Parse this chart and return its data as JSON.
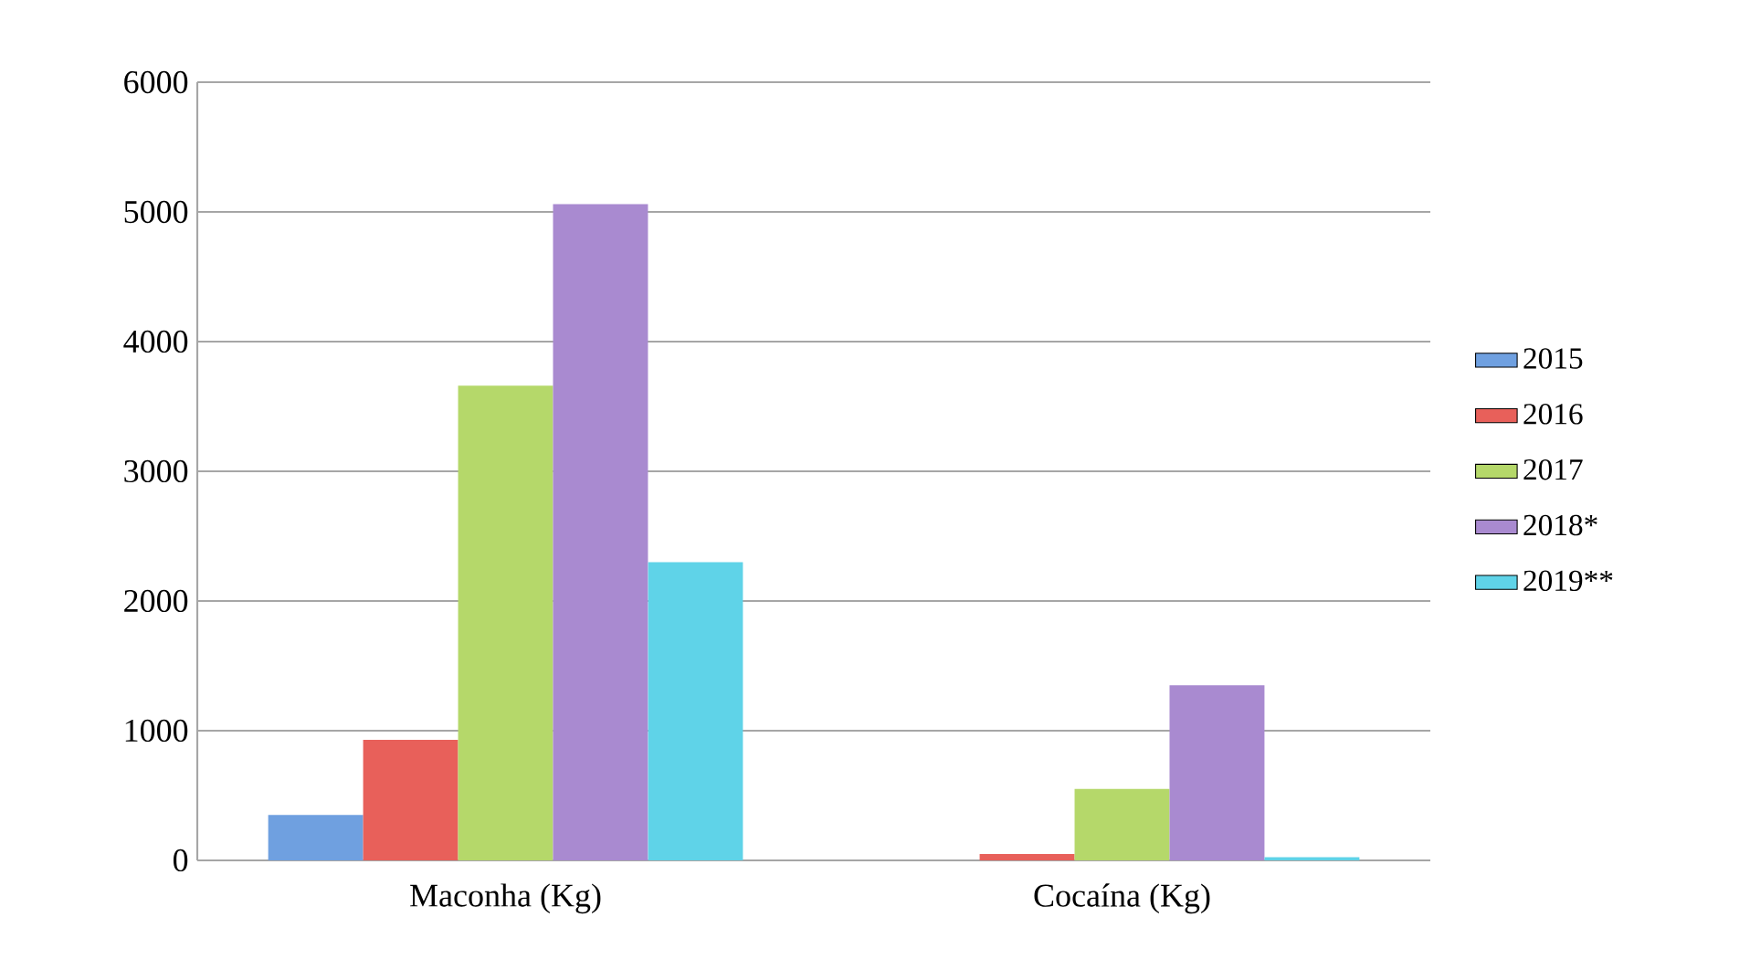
{
  "chart_data": {
    "type": "bar",
    "categories": [
      "Maconha (Kg)",
      "Cocaína (Kg)"
    ],
    "series": [
      {
        "name": "2015",
        "color": "#6fa0e0",
        "values": [
          350,
          0
        ]
      },
      {
        "name": "2016",
        "color": "#e8605a",
        "values": [
          930,
          50
        ]
      },
      {
        "name": "2017",
        "color": "#b5d86a",
        "values": [
          3660,
          550
        ]
      },
      {
        "name": "2018*",
        "color": "#a98ad0",
        "values": [
          5060,
          1350
        ]
      },
      {
        "name": "2019**",
        "color": "#5fd3e8",
        "values": [
          2300,
          25
        ]
      }
    ],
    "ylim": [
      0,
      6000
    ],
    "yticks": [
      0,
      1000,
      2000,
      3000,
      4000,
      5000,
      6000
    ],
    "grid": "y",
    "legend": "right"
  }
}
